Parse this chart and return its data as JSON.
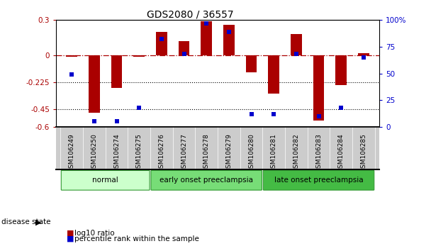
{
  "title": "GDS2080 / 36557",
  "samples": [
    "GSM106249",
    "GSM106250",
    "GSM106274",
    "GSM106275",
    "GSM106276",
    "GSM106277",
    "GSM106278",
    "GSM106279",
    "GSM106280",
    "GSM106281",
    "GSM106282",
    "GSM106283",
    "GSM106284",
    "GSM106285"
  ],
  "log10_ratio": [
    -0.01,
    -0.48,
    -0.27,
    -0.01,
    0.2,
    0.12,
    0.29,
    0.26,
    -0.14,
    -0.32,
    0.18,
    -0.55,
    -0.25,
    0.02
  ],
  "percentile_rank": [
    49,
    5,
    5,
    18,
    82,
    68,
    97,
    89,
    12,
    12,
    68,
    10,
    18,
    65
  ],
  "bar_color": "#aa0000",
  "dot_color": "#0000cc",
  "ylim_left": [
    -0.6,
    0.3
  ],
  "ylim_right": [
    0,
    100
  ],
  "yticks_left": [
    0.3,
    0.0,
    -0.225,
    -0.45,
    -0.6
  ],
  "yticks_right": [
    100,
    75,
    50,
    25,
    0
  ],
  "groups": [
    {
      "label": "normal",
      "start": 0,
      "end": 4,
      "color": "#ccffcc"
    },
    {
      "label": "early onset preeclampsia",
      "start": 4,
      "end": 9,
      "color": "#77dd77"
    },
    {
      "label": "late onset preeclampsia",
      "start": 9,
      "end": 14,
      "color": "#44bb44"
    }
  ],
  "legend_log10": "log10 ratio",
  "legend_pct": "percentile rank within the sample",
  "disease_state_label": "disease state",
  "dotted_lines": [
    -0.225,
    -0.45
  ],
  "bar_width": 0.5,
  "tick_label_bg": "#cccccc",
  "group_edge_color": "#339933",
  "xlim": [
    -0.7,
    13.7
  ]
}
